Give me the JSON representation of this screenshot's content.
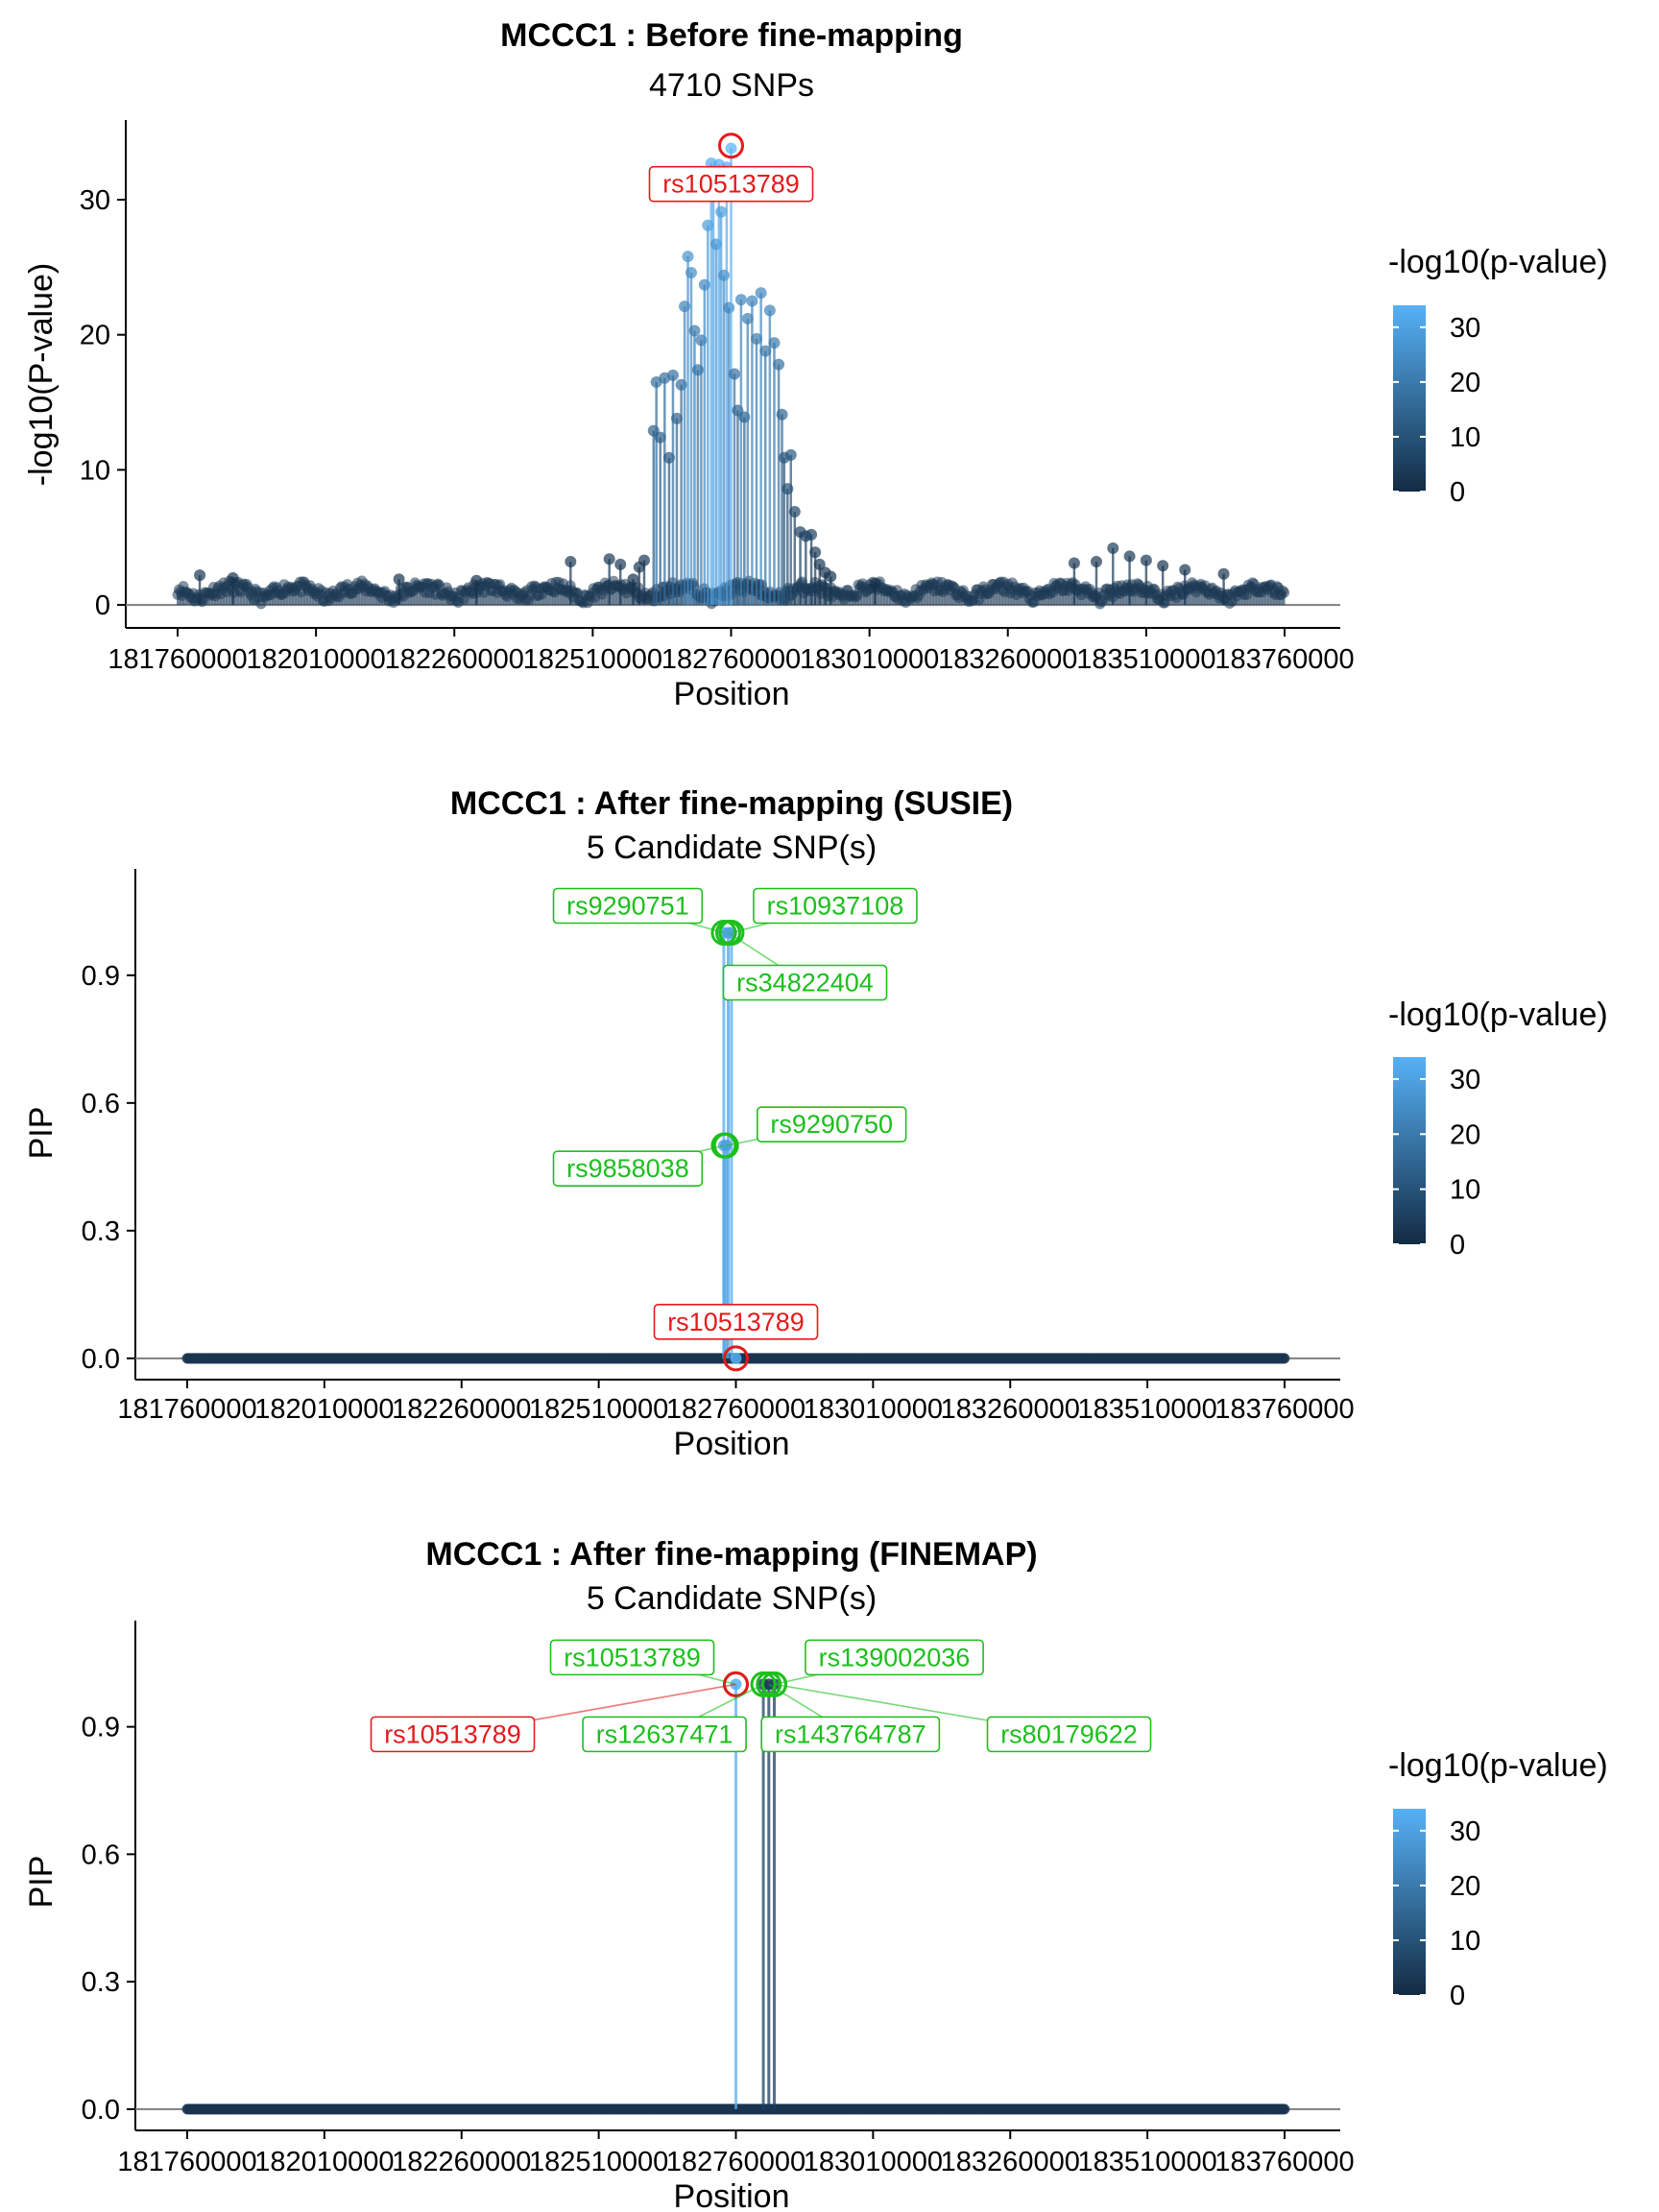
{
  "chart_data": [
    {
      "type": "scatter",
      "title": "MCCC1 : Before fine-mapping",
      "subtitle": "4710 SNPs",
      "xlabel": "Position",
      "ylabel": "-log10(P-value)",
      "xlim": [
        181760000,
        183760000
      ],
      "ylim": [
        -1.7,
        35.9
      ],
      "x_ticks": [
        181760000,
        182010000,
        182260000,
        182510000,
        182760000,
        183010000,
        183260000,
        183510000,
        183760000
      ],
      "x_tick_labels": [
        "181760000",
        "182010000",
        "182260000",
        "182510000",
        "182760000",
        "183010000",
        "183260000",
        "183510000",
        "183760000"
      ],
      "y_ticks": [
        0,
        10,
        20,
        30
      ],
      "y_tick_labels": [
        "0",
        "10",
        "20",
        "30"
      ],
      "hline": 0,
      "legend": {
        "title": "-log10(p-value)",
        "position": "right",
        "ticks": [
          0,
          10,
          20,
          30
        ],
        "tick_labels": [
          "0",
          "10",
          "20",
          "30"
        ],
        "colors": [
          "#132b43",
          "#56b1f7"
        ],
        "max": 34
      },
      "background_band": {
        "x_range": [
          181760000,
          183760000
        ],
        "y_range": [
          0,
          2.5
        ],
        "amplitude": 0.9
      },
      "peak": [
        {
          "x": 182620000,
          "y": 12.9
        },
        {
          "x": 182625000,
          "y": 16.5
        },
        {
          "x": 182632000,
          "y": 12.4
        },
        {
          "x": 182640000,
          "y": 16.8
        },
        {
          "x": 182648000,
          "y": 10.9
        },
        {
          "x": 182655000,
          "y": 17.0
        },
        {
          "x": 182662000,
          "y": 13.8
        },
        {
          "x": 182670000,
          "y": 16.3
        },
        {
          "x": 182676000,
          "y": 22.1
        },
        {
          "x": 182682000,
          "y": 25.8
        },
        {
          "x": 182688000,
          "y": 24.6
        },
        {
          "x": 182694000,
          "y": 20.3
        },
        {
          "x": 182700000,
          "y": 17.4
        },
        {
          "x": 182706000,
          "y": 19.6
        },
        {
          "x": 182712000,
          "y": 23.7
        },
        {
          "x": 182718000,
          "y": 28.1
        },
        {
          "x": 182724000,
          "y": 32.7
        },
        {
          "x": 182728000,
          "y": 30.5
        },
        {
          "x": 182733000,
          "y": 26.7
        },
        {
          "x": 182738000,
          "y": 32.6
        },
        {
          "x": 182742000,
          "y": 29.1
        },
        {
          "x": 182747000,
          "y": 24.4
        },
        {
          "x": 182752000,
          "y": 32.4
        },
        {
          "x": 182756000,
          "y": 22.0
        },
        {
          "x": 182760000,
          "y": 33.8
        },
        {
          "x": 182766000,
          "y": 17.1
        },
        {
          "x": 182772000,
          "y": 14.4
        },
        {
          "x": 182778000,
          "y": 22.6
        },
        {
          "x": 182784000,
          "y": 13.9
        },
        {
          "x": 182790000,
          "y": 21.2
        },
        {
          "x": 182798000,
          "y": 22.5
        },
        {
          "x": 182806000,
          "y": 19.7
        },
        {
          "x": 182814000,
          "y": 23.1
        },
        {
          "x": 182822000,
          "y": 18.8
        },
        {
          "x": 182830000,
          "y": 21.8
        },
        {
          "x": 182838000,
          "y": 19.4
        },
        {
          "x": 182846000,
          "y": 17.8
        },
        {
          "x": 182852000,
          "y": 14.1
        },
        {
          "x": 182856000,
          "y": 10.9
        },
        {
          "x": 182862000,
          "y": 8.6
        },
        {
          "x": 182868000,
          "y": 11.1
        },
        {
          "x": 182875000,
          "y": 6.9
        },
        {
          "x": 182885000,
          "y": 5.4
        },
        {
          "x": 182895000,
          "y": 5.1
        },
        {
          "x": 182905000,
          "y": 5.2
        },
        {
          "x": 182912000,
          "y": 3.9
        },
        {
          "x": 182603000,
          "y": 3.3
        },
        {
          "x": 182594000,
          "y": 2.8
        },
        {
          "x": 182583000,
          "y": 1.9
        },
        {
          "x": 182920000,
          "y": 3.0
        },
        {
          "x": 182930000,
          "y": 2.4
        },
        {
          "x": 182940000,
          "y": 2.1
        },
        {
          "x": 182540000,
          "y": 3.4
        },
        {
          "x": 182470000,
          "y": 3.2
        },
        {
          "x": 182560000,
          "y": 3.0
        },
        {
          "x": 183020000,
          "y": 1.6
        },
        {
          "x": 183380000,
          "y": 3.1
        },
        {
          "x": 183420000,
          "y": 3.2
        },
        {
          "x": 183450000,
          "y": 4.2
        },
        {
          "x": 183480000,
          "y": 3.6
        },
        {
          "x": 183510000,
          "y": 3.3
        },
        {
          "x": 183540000,
          "y": 2.9
        },
        {
          "x": 183580000,
          "y": 2.6
        },
        {
          "x": 183650000,
          "y": 2.3
        },
        {
          "x": 181800000,
          "y": 2.2
        },
        {
          "x": 181860000,
          "y": 2.0
        },
        {
          "x": 182160000,
          "y": 1.9
        },
        {
          "x": 182300000,
          "y": 1.8
        }
      ],
      "highlights": [
        {
          "x": 182760000,
          "y": 34.0,
          "label": "rs10513789",
          "color": "#e41a1c"
        }
      ]
    },
    {
      "type": "scatter",
      "title": "MCCC1 : After fine-mapping (SUSIE)",
      "subtitle": "5 Candidate SNP(s)",
      "xlabel": "Position",
      "ylabel": "PIP",
      "xlim": [
        181760000,
        183760000
      ],
      "ylim": [
        -0.05,
        1.15
      ],
      "x_ticks": [
        181760000,
        182010000,
        182260000,
        182510000,
        182760000,
        183010000,
        183260000,
        183510000,
        183760000
      ],
      "x_tick_labels": [
        "181760000",
        "182010000",
        "182260000",
        "182510000",
        "182760000",
        "183010000",
        "183260000",
        "183510000",
        "183760000"
      ],
      "y_ticks": [
        0.0,
        0.3,
        0.6,
        0.9
      ],
      "y_tick_labels": [
        "0.0",
        "0.3",
        "0.6",
        "0.9"
      ],
      "hline": 0,
      "legend": {
        "title": "-log10(p-value)",
        "position": "right",
        "ticks": [
          0,
          10,
          20,
          30
        ],
        "tick_labels": [
          "0",
          "10",
          "20",
          "30"
        ],
        "colors": [
          "#132b43",
          "#56b1f7"
        ],
        "max": 34
      },
      "points": [
        {
          "x": 182738000,
          "y": 1.0,
          "logp": 32.6
        },
        {
          "x": 182752000,
          "y": 1.0,
          "logp": 32.4
        },
        {
          "x": 182746000,
          "y": 1.0,
          "logp": 30.0
        },
        {
          "x": 182738000,
          "y": 0.5,
          "logp": 32.6
        },
        {
          "x": 182742000,
          "y": 0.5,
          "logp": 29.1
        },
        {
          "x": 182760000,
          "y": 0.0,
          "logp": 33.8
        }
      ],
      "highlights": [
        {
          "x": 182738000,
          "y": 1.0,
          "label": "rs9290751",
          "color": "#1dbf1d"
        },
        {
          "x": 182752000,
          "y": 1.0,
          "label": "rs10937108",
          "color": "#1dbf1d"
        },
        {
          "x": 182746000,
          "y": 1.0,
          "label": "rs34822404",
          "color": "#1dbf1d"
        },
        {
          "x": 182742000,
          "y": 0.5,
          "label": "rs9290750",
          "color": "#1dbf1d"
        },
        {
          "x": 182738000,
          "y": 0.5,
          "label": "rs9858038",
          "color": "#1dbf1d"
        },
        {
          "x": 182760000,
          "y": 0.0,
          "label": "rs10513789",
          "color": "#e41a1c"
        }
      ]
    },
    {
      "type": "scatter",
      "title": "MCCC1 : After fine-mapping (FINEMAP)",
      "subtitle": "5 Candidate SNP(s)",
      "xlabel": "Position",
      "ylabel": "PIP",
      "xlim": [
        181760000,
        183760000
      ],
      "ylim": [
        -0.05,
        1.15
      ],
      "x_ticks": [
        181760000,
        182010000,
        182260000,
        182510000,
        182760000,
        183010000,
        183260000,
        183510000,
        183760000
      ],
      "x_tick_labels": [
        "181760000",
        "182010000",
        "182260000",
        "182510000",
        "182760000",
        "183010000",
        "183260000",
        "183510000",
        "183760000"
      ],
      "y_ticks": [
        0.0,
        0.3,
        0.6,
        0.9
      ],
      "y_tick_labels": [
        "0.0",
        "0.3",
        "0.6",
        "0.9"
      ],
      "hline": 0,
      "legend": {
        "title": "-log10(p-value)",
        "position": "right",
        "ticks": [
          0,
          10,
          20,
          30
        ],
        "tick_labels": [
          "0",
          "10",
          "20",
          "30"
        ],
        "colors": [
          "#132b43",
          "#56b1f7"
        ],
        "max": 34
      },
      "points": [
        {
          "x": 182760000,
          "y": 1.0,
          "logp": 33.8
        },
        {
          "x": 182810000,
          "y": 1.0,
          "logp": 6.0
        },
        {
          "x": 182820000,
          "y": 1.0,
          "logp": 4.0
        },
        {
          "x": 182830000,
          "y": 1.0,
          "logp": 5.0
        }
      ],
      "highlights": [
        {
          "x": 182760000,
          "y": 1.0,
          "label": "rs10513789",
          "color": "#1dbf1d"
        },
        {
          "x": 182830000,
          "y": 1.0,
          "label": "rs139002036",
          "color": "#1dbf1d"
        },
        {
          "x": 182760000,
          "y": 1.0,
          "label": "rs10513789",
          "color": "#e41a1c"
        },
        {
          "x": 182810000,
          "y": 1.0,
          "label": "rs12637471",
          "color": "#1dbf1d"
        },
        {
          "x": 182820000,
          "y": 1.0,
          "label": "rs143764787",
          "color": "#1dbf1d"
        },
        {
          "x": 182830000,
          "y": 1.0,
          "label": "rs80179622",
          "color": "#1dbf1d"
        }
      ]
    }
  ]
}
